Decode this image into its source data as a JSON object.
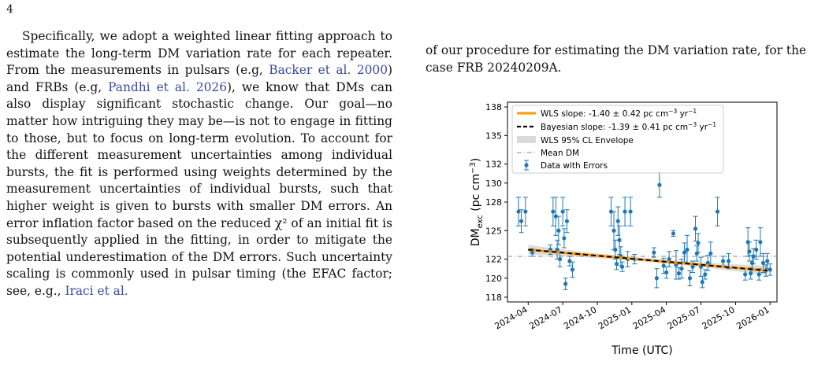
{
  "page_number": "4",
  "left_column": {
    "p1_a": "Specifically, we adopt a weighted linear fitting approach to estimate the long-term DM variation rate for each repeater. From the measurements in pulsars (e.g, ",
    "cite1": "Backer et al. 2000",
    "p1_b": ") and FRBs (e.g, ",
    "cite2": "Pandhi et al. 2026",
    "p1_c": "), we know that DMs can also display significant stochastic change. Our goal—no matter how intriguing they may be—is not to engage in fitting to those, but to focus on long-term evolution. To account for the different measurement uncertainties among individual bursts, the fit is performed using weights determined by the measurement uncertainties of individual bursts, such that higher weight is given to bursts with smaller DM errors. An error inflation factor based on the reduced χ² of an initial fit is subsequently applied in the fitting, in order to mitigate the potential underestimation of the DM errors. Such uncertainty scaling is commonly used in pulsar timing (the EFAC factor; see, e.g., ",
    "cite3": "Iraci et al."
  },
  "right_column": {
    "text": "of our procedure for estimating the DM variation rate, for the case FRB 20240209A."
  },
  "chart_data": {
    "type": "scatter",
    "xlabel": "Time (UTC)",
    "ylabel": "DM",
    "ylabel_sub": "exc",
    "ylabel_units": " (pc cm",
    "ylabel_sup": "−3",
    "ylabel_close": ")",
    "x_ticks": [
      "2024-04",
      "2024-07",
      "2024-10",
      "2025-01",
      "2025-04",
      "2025-07",
      "2025-10",
      "2026-01"
    ],
    "y_ticks": [
      118,
      120,
      122,
      125,
      128,
      130,
      132,
      135,
      138
    ],
    "ylim": [
      117.5,
      138.5
    ],
    "xlim_months": [
      2024.1,
      2026.05
    ],
    "legend": {
      "placement": "top-left",
      "entries": [
        {
          "label": "WLS slope: -1.40 ± 0.42 pc cm",
          "sup": "−3",
          "label2": " yr",
          "sup2": "−1",
          "style": "orange-line"
        },
        {
          "label": "Bayesian slope: -1.39 ± 0.41 pc cm",
          "sup": "−3",
          "label2": " yr",
          "sup2": "−1",
          "style": "black-dashed"
        },
        {
          "label": "WLS 95% CL Envelope",
          "style": "gray-box"
        },
        {
          "label": "Mean DM",
          "style": "dashdot"
        },
        {
          "label": "Data with Errors",
          "style": "errorbar"
        }
      ]
    },
    "mean_dm": 122.3,
    "fit_line": {
      "x0": 2024.25,
      "y0": 123.0,
      "x1": 2025.98,
      "y1": 120.8
    },
    "colors": {
      "data": "#1f77b4",
      "wls": "#ff9900",
      "bayes": "#000000",
      "envelope": "#d9d9d9",
      "mean": "#888888"
    },
    "points": [
      {
        "t": 2024.18,
        "y": 127.0,
        "e": 1.5
      },
      {
        "t": 2024.2,
        "y": 126.0,
        "e": 1.2
      },
      {
        "t": 2024.23,
        "y": 127.0,
        "e": 1.5
      },
      {
        "t": 2024.28,
        "y": 122.7,
        "e": 0.4
      },
      {
        "t": 2024.41,
        "y": 123.0,
        "e": 0.5
      },
      {
        "t": 2024.43,
        "y": 127.0,
        "e": 1.5
      },
      {
        "t": 2024.45,
        "y": 126.5,
        "e": 2.0
      },
      {
        "t": 2024.46,
        "y": 123.0,
        "e": 1.0
      },
      {
        "t": 2024.47,
        "y": 125.0,
        "e": 1.5
      },
      {
        "t": 2024.48,
        "y": 122.0,
        "e": 0.8
      },
      {
        "t": 2024.5,
        "y": 127.0,
        "e": 1.5
      },
      {
        "t": 2024.51,
        "y": 124.2,
        "e": 1.0
      },
      {
        "t": 2024.52,
        "y": 119.4,
        "e": 0.6
      },
      {
        "t": 2024.53,
        "y": 126.0,
        "e": 1.2
      },
      {
        "t": 2024.55,
        "y": 121.8,
        "e": 0.5
      },
      {
        "t": 2024.57,
        "y": 120.9,
        "e": 0.8
      },
      {
        "t": 2024.85,
        "y": 127.0,
        "e": 1.5
      },
      {
        "t": 2024.87,
        "y": 125.0,
        "e": 2.0
      },
      {
        "t": 2024.88,
        "y": 123.0,
        "e": 1.0
      },
      {
        "t": 2024.89,
        "y": 121.5,
        "e": 0.6
      },
      {
        "t": 2024.9,
        "y": 126.0,
        "e": 1.5
      },
      {
        "t": 2024.91,
        "y": 124.0,
        "e": 1.5
      },
      {
        "t": 2024.92,
        "y": 122.3,
        "e": 1.0
      },
      {
        "t": 2024.93,
        "y": 121.2,
        "e": 0.5
      },
      {
        "t": 2024.95,
        "y": 127.0,
        "e": 1.5
      },
      {
        "t": 2024.97,
        "y": 122.0,
        "e": 0.8
      },
      {
        "t": 2024.99,
        "y": 127.0,
        "e": 1.5
      },
      {
        "t": 2025.02,
        "y": 122.0,
        "e": 0.5
      },
      {
        "t": 2025.16,
        "y": 122.7,
        "e": 0.5
      },
      {
        "t": 2025.18,
        "y": 120.0,
        "e": 1.0
      },
      {
        "t": 2025.2,
        "y": 129.8,
        "e": 1.3
      },
      {
        "t": 2025.23,
        "y": 121.3,
        "e": 0.8
      },
      {
        "t": 2025.25,
        "y": 120.6,
        "e": 0.6
      },
      {
        "t": 2025.27,
        "y": 122.0,
        "e": 0.8
      },
      {
        "t": 2025.3,
        "y": 124.7,
        "e": 0.3
      },
      {
        "t": 2025.32,
        "y": 121.4,
        "e": 1.5
      },
      {
        "t": 2025.34,
        "y": 120.5,
        "e": 0.6
      },
      {
        "t": 2025.36,
        "y": 121.0,
        "e": 1.0
      },
      {
        "t": 2025.38,
        "y": 122.7,
        "e": 1.0
      },
      {
        "t": 2025.4,
        "y": 123.0,
        "e": 1.5
      },
      {
        "t": 2025.42,
        "y": 120.0,
        "e": 0.8
      },
      {
        "t": 2025.44,
        "y": 121.2,
        "e": 0.6
      },
      {
        "t": 2025.46,
        "y": 125.2,
        "e": 1.3
      },
      {
        "t": 2025.47,
        "y": 122.6,
        "e": 0.8
      },
      {
        "t": 2025.48,
        "y": 123.7,
        "e": 1.0
      },
      {
        "t": 2025.5,
        "y": 121.2,
        "e": 1.0
      },
      {
        "t": 2025.51,
        "y": 119.6,
        "e": 0.6
      },
      {
        "t": 2025.53,
        "y": 120.4,
        "e": 0.5
      },
      {
        "t": 2025.55,
        "y": 121.6,
        "e": 0.8
      },
      {
        "t": 2025.57,
        "y": 122.6,
        "e": 1.2
      },
      {
        "t": 2025.62,
        "y": 127.0,
        "e": 1.5
      },
      {
        "t": 2025.66,
        "y": 121.8,
        "e": 0.5
      },
      {
        "t": 2025.7,
        "y": 121.8,
        "e": 0.8
      },
      {
        "t": 2025.82,
        "y": 120.4,
        "e": 0.6
      },
      {
        "t": 2025.84,
        "y": 123.8,
        "e": 1.5
      },
      {
        "t": 2025.85,
        "y": 122.8,
        "e": 1.0
      },
      {
        "t": 2025.86,
        "y": 120.5,
        "e": 0.6
      },
      {
        "t": 2025.87,
        "y": 121.6,
        "e": 0.8
      },
      {
        "t": 2025.88,
        "y": 122.3,
        "e": 0.8
      },
      {
        "t": 2025.9,
        "y": 123.0,
        "e": 1.0
      },
      {
        "t": 2025.92,
        "y": 120.4,
        "e": 0.6
      },
      {
        "t": 2025.93,
        "y": 123.8,
        "e": 1.5
      },
      {
        "t": 2025.95,
        "y": 121.6,
        "e": 1.0
      },
      {
        "t": 2025.97,
        "y": 120.8,
        "e": 0.6
      },
      {
        "t": 2025.98,
        "y": 121.8,
        "e": 0.8
      },
      {
        "t": 2026.0,
        "y": 120.9,
        "e": 0.6
      }
    ]
  }
}
